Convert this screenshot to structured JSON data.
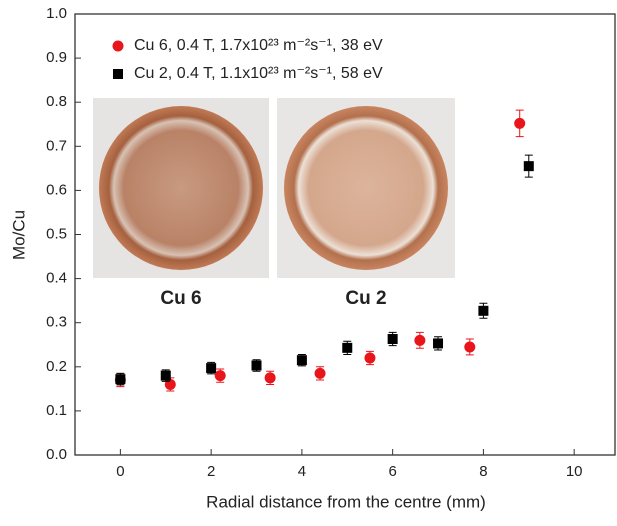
{
  "chart_data": {
    "type": "scatter",
    "xlabel": "Radial distance from the centre (mm)",
    "ylabel": "Mo/Cu",
    "xlim": [
      -1,
      10.9
    ],
    "ylim": [
      0,
      1
    ],
    "xticks": [
      0,
      2,
      4,
      6,
      8,
      10
    ],
    "yticks": [
      {
        "value": 0,
        "label": "0.0"
      },
      0.1,
      0.2,
      0.3,
      0.4,
      0.5,
      0.6,
      0.7,
      0.8,
      0.9,
      {
        "value": 1,
        "label": "1.0"
      }
    ],
    "legend": "upper left",
    "annotations": [
      "Cu 6",
      "Cu 2"
    ],
    "series": [
      {
        "name": "Cu 6, 0.4 T, 1.7x10²³ m⁻²s⁻¹, 38 eV",
        "color": "#e8161b",
        "marker": "circle",
        "x": [
          0,
          1.1,
          2.2,
          3.3,
          4.4,
          5.5,
          6.6,
          7.7,
          8.8
        ],
        "values": [
          0.17,
          0.16,
          0.18,
          0.175,
          0.185,
          0.22,
          0.26,
          0.245,
          0.752
        ],
        "errors": [
          0.015,
          0.015,
          0.015,
          0.015,
          0.015,
          0.015,
          0.018,
          0.018,
          0.03
        ]
      },
      {
        "name": "Cu 2, 0.4 T, 1.1x10²³ m⁻²s⁻¹, 58 eV",
        "color": "#000000",
        "marker": "square",
        "x": [
          0,
          1,
          2,
          3,
          4,
          5,
          6,
          7,
          8,
          9
        ],
        "values": [
          0.172,
          0.18,
          0.197,
          0.203,
          0.215,
          0.243,
          0.263,
          0.253,
          0.327,
          0.655
        ],
        "errors": [
          0.013,
          0.013,
          0.013,
          0.013,
          0.013,
          0.015,
          0.015,
          0.015,
          0.017,
          0.025
        ]
      }
    ]
  }
}
